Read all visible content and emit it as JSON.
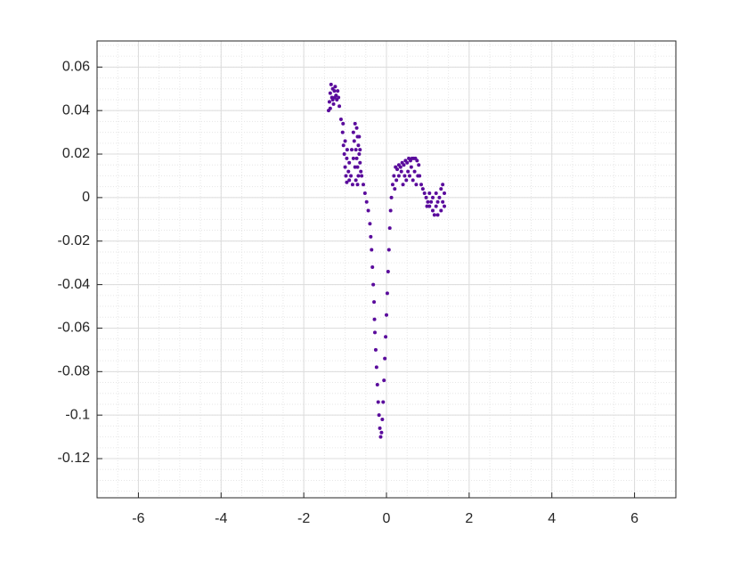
{
  "chart_data": {
    "type": "scatter",
    "color": "#5a0b9c",
    "grid": true,
    "minor_grid": true,
    "xlim": [
      -7,
      7
    ],
    "xticks": [
      -6,
      -4,
      -2,
      0,
      2,
      4,
      6
    ],
    "ylim": [
      -0.138,
      0.072
    ],
    "yticks": [
      -0.12,
      -0.1,
      -0.08,
      -0.06,
      -0.04,
      -0.02,
      0,
      0.02,
      0.04,
      0.06
    ],
    "x": [
      -1.4,
      -1.38,
      -1.36,
      -1.34,
      -1.32,
      -1.3,
      -1.28,
      -1.26,
      -1.24,
      -1.22,
      -1.2,
      -1.18,
      -1.16,
      -1.14,
      -1.36,
      -1.3,
      -1.25,
      -1.1,
      -1.06,
      -1.04,
      -1.02,
      -1.0,
      -0.98,
      -0.96,
      -1.05,
      -1.0,
      -0.96,
      -0.92,
      -0.9,
      -0.95,
      -0.9,
      -0.86,
      -0.82,
      -0.8,
      -0.76,
      -0.72,
      -0.7,
      -0.68,
      -0.66,
      -0.64,
      -0.62,
      -0.78,
      -0.74,
      -0.72,
      -0.7,
      -0.68,
      -0.8,
      -0.76,
      -0.74,
      -0.7,
      -0.84,
      -0.66,
      -0.64,
      -0.6,
      -0.56,
      -0.52,
      -0.48,
      -0.44,
      -0.4,
      -0.38,
      -0.36,
      -0.34,
      -0.32,
      -0.3,
      -0.29,
      -0.28,
      -0.26,
      -0.24,
      -0.22,
      -0.2,
      -0.18,
      -0.16,
      -0.14,
      -0.12,
      -0.1,
      -0.08,
      -0.06,
      -0.04,
      -0.02,
      0.0,
      0.02,
      0.04,
      0.06,
      0.08,
      0.1,
      0.12,
      0.15,
      0.18,
      0.22,
      0.2,
      0.24,
      0.26,
      0.3,
      0.34,
      0.38,
      0.42,
      0.46,
      0.5,
      0.54,
      0.58,
      0.62,
      0.66,
      0.7,
      0.74,
      0.78,
      0.3,
      0.36,
      0.44,
      0.52,
      0.6,
      0.68,
      0.76,
      0.4,
      0.48,
      0.56,
      0.64,
      0.72,
      0.8,
      0.84,
      0.88,
      0.92,
      0.96,
      1.0,
      1.04,
      1.08,
      1.12,
      1.16,
      1.2,
      1.24,
      1.28,
      1.32,
      1.36,
      1.4,
      1.36,
      1.4,
      1.32,
      1.2,
      1.12,
      1.04,
      1.24,
      0.98
    ],
    "values": [
      0.04,
      0.044,
      0.048,
      0.052,
      0.046,
      0.05,
      0.043,
      0.049,
      0.051,
      0.047,
      0.045,
      0.049,
      0.046,
      0.042,
      0.041,
      0.045,
      0.046,
      0.036,
      0.03,
      0.024,
      0.02,
      0.014,
      0.01,
      0.007,
      0.034,
      0.026,
      0.018,
      0.012,
      0.008,
      0.022,
      0.016,
      0.01,
      0.006,
      0.03,
      0.034,
      0.032,
      0.028,
      0.024,
      0.02,
      0.016,
      0.012,
      0.026,
      0.022,
      0.018,
      0.014,
      0.01,
      0.018,
      0.014,
      0.008,
      0.006,
      0.022,
      0.028,
      0.022,
      0.01,
      0.006,
      0.002,
      -0.002,
      -0.006,
      -0.012,
      -0.018,
      -0.024,
      -0.032,
      -0.04,
      -0.048,
      -0.056,
      -0.062,
      -0.07,
      -0.078,
      -0.086,
      -0.094,
      -0.1,
      -0.106,
      -0.11,
      -0.108,
      -0.102,
      -0.094,
      -0.084,
      -0.074,
      -0.064,
      -0.054,
      -0.044,
      -0.034,
      -0.024,
      -0.014,
      -0.006,
      0.0,
      0.006,
      0.01,
      0.014,
      0.004,
      0.008,
      0.013,
      0.015,
      0.014,
      0.016,
      0.015,
      0.017,
      0.016,
      0.018,
      0.017,
      0.018,
      0.018,
      0.018,
      0.017,
      0.015,
      0.01,
      0.012,
      0.01,
      0.012,
      0.014,
      0.012,
      0.01,
      0.006,
      0.008,
      0.01,
      0.008,
      0.006,
      0.01,
      0.006,
      0.004,
      0.002,
      0.0,
      -0.002,
      -0.004,
      -0.002,
      -0.006,
      -0.008,
      -0.004,
      -0.002,
      0.0,
      0.004,
      0.006,
      0.002,
      -0.002,
      -0.004,
      -0.006,
      0.002,
      0.0,
      0.002,
      -0.008,
      -0.004
    ]
  }
}
